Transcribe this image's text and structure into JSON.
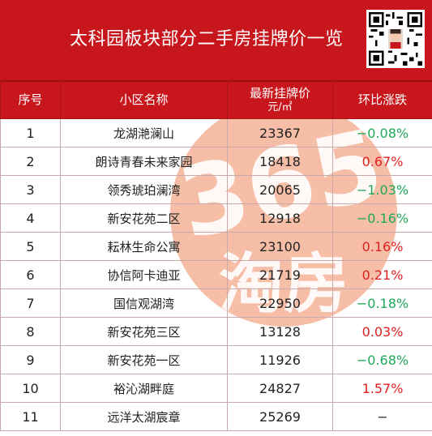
{
  "title": "太科园板块部分二手房挂牌价一览",
  "table": {
    "headers": {
      "index": "序号",
      "name": "小区名称",
      "price_line1": "最新挂牌价",
      "price_unit": "元/㎡",
      "change": "环比涨跌"
    },
    "rows": [
      {
        "index": "1",
        "name": "龙湖滟澜山",
        "price": "23367",
        "change": "−0.08%",
        "trend": "down"
      },
      {
        "index": "2",
        "name": "朗诗青春未来家园",
        "price": "18418",
        "change": "0.67%",
        "trend": "up"
      },
      {
        "index": "3",
        "name": "领秀琥珀澜湾",
        "price": "20065",
        "change": "−1.03%",
        "trend": "down"
      },
      {
        "index": "4",
        "name": "新安花苑二区",
        "price": "12918",
        "change": "−0.16%",
        "trend": "down"
      },
      {
        "index": "5",
        "name": "耘林生命公寓",
        "price": "23100",
        "change": "0.16%",
        "trend": "up"
      },
      {
        "index": "6",
        "name": "协信阿卡迪亚",
        "price": "21719",
        "change": "0.21%",
        "trend": "up"
      },
      {
        "index": "7",
        "name": "国信观湖湾",
        "price": "22950",
        "change": "−0.18%",
        "trend": "down"
      },
      {
        "index": "8",
        "name": "新安花苑三区",
        "price": "13128",
        "change": "0.03%",
        "trend": "up"
      },
      {
        "index": "9",
        "name": "新安花苑一区",
        "price": "11926",
        "change": "−0.68%",
        "trend": "down"
      },
      {
        "index": "10",
        "name": "裕沁湖畔庭",
        "price": "24827",
        "change": "1.57%",
        "trend": "up"
      },
      {
        "index": "11",
        "name": "远洋太湖宸章",
        "price": "25269",
        "change": "−",
        "trend": "flat"
      }
    ]
  },
  "colors": {
    "header_red": "#c8161d",
    "up": "#e02020",
    "down": "#1fa85a",
    "watermark": "#f4a585"
  },
  "watermark": {
    "text_top": "365",
    "text_bottom": "淘房"
  }
}
